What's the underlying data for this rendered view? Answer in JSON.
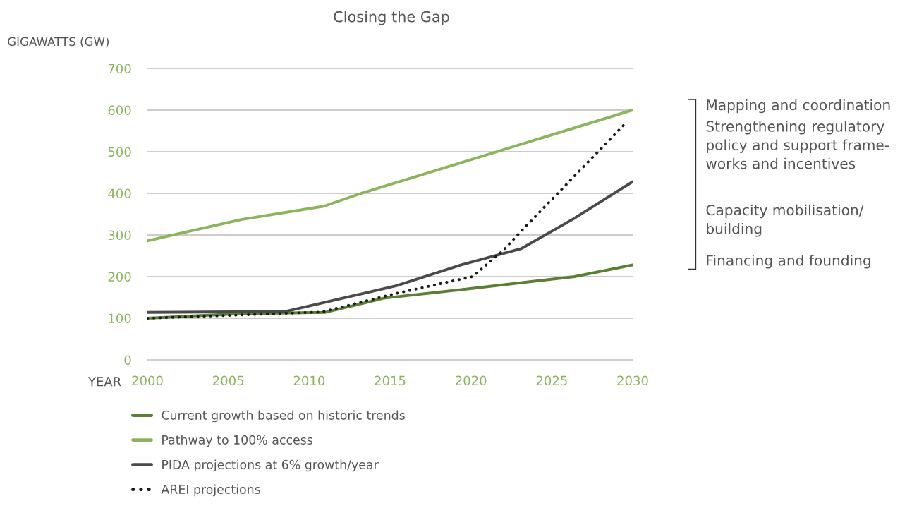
{
  "chart_data": {
    "type": "line",
    "title": "Closing the Gap",
    "xlabel": "YEAR",
    "ylabel": "GIGAWATTS (GW)",
    "xlim": [
      2000,
      2030
    ],
    "xticks": [
      2000,
      2005,
      2010,
      2015,
      2020,
      2025,
      2030
    ],
    "ylim": [
      0,
      700
    ],
    "yticks": [
      0,
      100,
      200,
      300,
      400,
      500,
      600,
      700
    ],
    "grid": "y",
    "legend": "bottom",
    "series": [
      {
        "name": "Current growth based on historic trends",
        "color": "#5a8034",
        "line_style": "solid",
        "x": [
          2000,
          2005.8,
          2011,
          2014.6,
          2019.5,
          2026.4,
          2030
        ],
        "values": [
          100,
          111,
          114,
          148,
          169,
          200,
          228
        ]
      },
      {
        "name": "Pathway to 100% access",
        "color": "#8ab55a",
        "line_style": "solid",
        "x": [
          2000,
          2005.8,
          2010.9,
          2013.3,
          2030
        ],
        "values": [
          286,
          337,
          369,
          401,
          600
        ]
      },
      {
        "name": "PIDA projections at 6% growth/year",
        "color": "#4a4a4a",
        "line_style": "solid",
        "x": [
          2000,
          2008.5,
          2015.4,
          2019.4,
          2023.1,
          2026.3,
          2030
        ],
        "values": [
          114,
          116,
          178,
          228,
          267,
          338,
          428
        ]
      },
      {
        "name": "AREI projections",
        "color": "#1a1a1a",
        "line_style": "dotted",
        "x": [
          2000,
          2005.2,
          2010.8,
          2015.2,
          2020.1,
          2022,
          2023.1,
          2029.6
        ],
        "values": [
          100,
          107,
          115,
          158,
          200,
          263,
          309,
          570
        ]
      }
    ],
    "annotations": [
      "Mapping and coordination",
      "Strengthening regulatory\npolicy and support frame-\nworks and incentives",
      "Capacity mobilisation/\nbuilding",
      "Financing and founding"
    ]
  }
}
